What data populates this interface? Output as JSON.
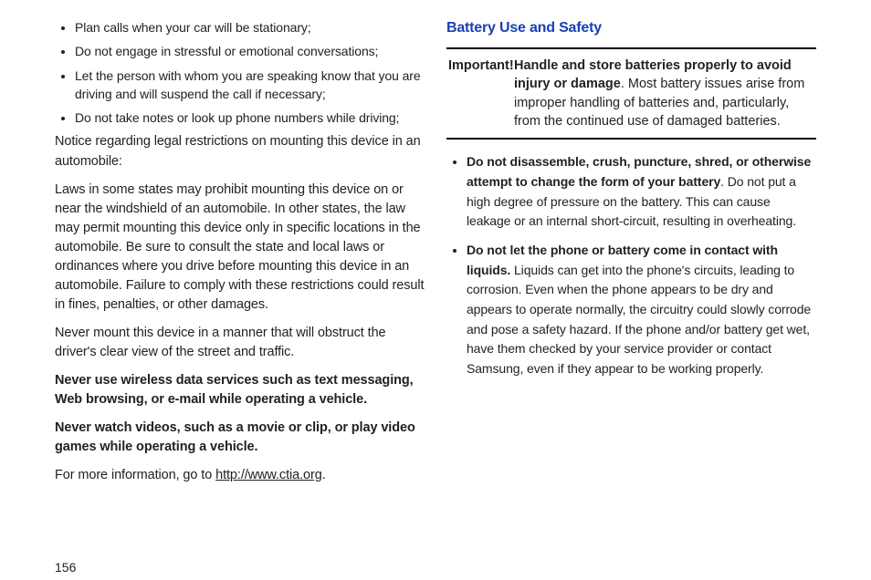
{
  "page_number": "156",
  "left": {
    "bullets": [
      "Plan calls when your car will be stationary;",
      "Do not engage in stressful or emotional conversations;",
      "Let the person with whom you are speaking know that you are driving and will suspend the call if necessary;",
      "Do not take notes or look up phone numbers while driving;"
    ],
    "notice_heading": "Notice regarding legal restrictions on mounting this device in an automobile:",
    "laws_para": "Laws in some states may prohibit mounting this device on or near the windshield of an automobile. In other states, the law may permit mounting this device only in specific locations in the automobile. Be sure to consult the state and local laws or ordinances where you drive before mounting this device in an automobile. Failure to comply with these restrictions could result in fines, penalties, or other damages.",
    "never_mount": "Never mount this device in a manner that will obstruct the driver's clear view of the street and traffic.",
    "never_wireless": "Never use wireless data services such as text messaging, Web browsing, or e-mail while operating a vehicle.",
    "never_videos": "Never watch videos, such as a movie or clip, or play video games while operating a vehicle.",
    "more_info_pre": "For more information, go to ",
    "more_info_link": "http://www.ctia.org",
    "more_info_post": "."
  },
  "right": {
    "heading": "Battery Use and Safety",
    "important_label": "Important!",
    "important_bold": "Handle and store batteries properly to avoid injury or damage",
    "important_rest": ". Most battery issues arise from improper handling of batteries and, particularly, from the continued use of damaged batteries.",
    "bullets": [
      {
        "bold": "Do not disassemble, crush, puncture, shred, or otherwise attempt to change the form of your battery",
        "rest": ". Do not put a high degree of pressure on the battery. This can cause leakage or an internal short-circuit, resulting in overheating."
      },
      {
        "bold": "Do not let the phone or battery come in contact with liquids.",
        "rest": " Liquids can get into the phone's circuits, leading to corrosion. Even when the phone appears to be dry and appears to operate normally, the circuitry could slowly corrode and pose a safety hazard. If the phone and/or battery get wet, have them checked by your service provider or contact Samsung, even if they appear to be working properly."
      }
    ]
  },
  "colors": {
    "heading_blue": "#1a3fb3",
    "text": "#222222",
    "background": "#ffffff",
    "rule": "#000000"
  },
  "typography": {
    "body_fontsize_pt": 11,
    "heading_fontsize_pt": 12,
    "font_family": "Arial / Helvetica"
  }
}
